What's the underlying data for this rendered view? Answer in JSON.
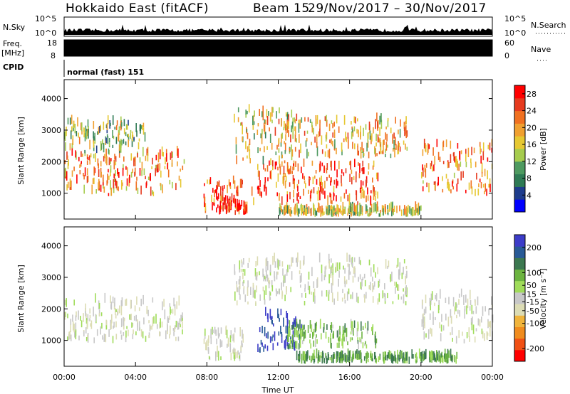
{
  "header": {
    "station": "Hokkaido East (fitACF)",
    "beam": "Beam 15",
    "date_range": "29/Nov/2017 – 30/Nov/2017"
  },
  "panels": {
    "nsky": {
      "left_label": "N.Sky",
      "right_label": "N.Search",
      "left_ticks": [
        "10^5",
        "10^0"
      ],
      "right_ticks": [
        "10^5",
        "10^0"
      ]
    },
    "freq": {
      "left_label": "Freq.",
      "unit": "[MHz]",
      "left_ticks": [
        "18",
        "8"
      ],
      "right_label": "Nave",
      "right_ticks": [
        "60",
        "0"
      ]
    },
    "cpid": {
      "label": "CPID",
      "program": "normal (fast) 151"
    }
  },
  "colors": {
    "power_scale": [
      "#0000ff",
      "#1e3c8c",
      "#2e7a54",
      "#4e9a60",
      "#a6cc4e",
      "#e6c832",
      "#f0a030",
      "#f07020",
      "#e63a1e",
      "#ff0000"
    ],
    "velocity_scale": [
      "#3c3cc8",
      "#285a96",
      "#3c7850",
      "#6cb440",
      "#a0dc5a",
      "#c8c8c8",
      "#dcdcb4",
      "#f0b43c",
      "#f08c1e",
      "#f05014",
      "#ff0000"
    ]
  },
  "chart_data": [
    {
      "type": "heatmap",
      "name": "power",
      "ylabel": "Slant Range [km]",
      "xlabel": "",
      "xlim": [
        "00:00",
        "24:00"
      ],
      "ylim": [
        180,
        4600
      ],
      "yticks": [
        1000,
        2000,
        3000,
        4000
      ],
      "xticks": [
        "00:00",
        "04:00",
        "08:00",
        "12:00",
        "16:00",
        "20:00",
        "00:00"
      ],
      "colorbar": {
        "label": "Power [dB]",
        "ticks": [
          4,
          8,
          12,
          16,
          20,
          24,
          28
        ],
        "range": [
          0,
          30
        ]
      },
      "regions": [
        {
          "t0": 0.0,
          "t1": 6.7,
          "r0": 900,
          "r1": 2200,
          "level": 0.72
        },
        {
          "t0": 0.0,
          "t1": 4.5,
          "r0": 2200,
          "r1": 3200,
          "level": 0.45
        },
        {
          "t0": 7.8,
          "t1": 10.0,
          "r0": 350,
          "r1": 1300,
          "level": 0.82
        },
        {
          "t0": 8.6,
          "t1": 10.3,
          "r0": 300,
          "r1": 600,
          "level": 0.93
        },
        {
          "t0": 10.5,
          "t1": 17.6,
          "r0": 600,
          "r1": 1900,
          "level": 0.78
        },
        {
          "t0": 9.5,
          "t1": 12.8,
          "r0": 1900,
          "r1": 3600,
          "level": 0.55
        },
        {
          "t0": 12.0,
          "t1": 19.2,
          "r0": 2100,
          "r1": 3300,
          "level": 0.62
        },
        {
          "t0": 20.0,
          "t1": 24.0,
          "r0": 900,
          "r1": 2500,
          "level": 0.74
        },
        {
          "t0": 12.0,
          "t1": 20.0,
          "r0": 250,
          "r1": 450,
          "level": 0.5
        }
      ]
    },
    {
      "type": "heatmap",
      "name": "velocity",
      "ylabel": "Slant Range [km]",
      "xlabel": "Time UT",
      "xlim": [
        "00:00",
        "24:00"
      ],
      "ylim": [
        180,
        4600
      ],
      "yticks": [
        1000,
        2000,
        3000,
        4000
      ],
      "xticks": [
        "00:00",
        "04:00",
        "08:00",
        "12:00",
        "16:00",
        "20:00",
        "00:00"
      ],
      "colorbar": {
        "label": "Velocity [m s⁻¹]",
        "ticks": [
          200,
          100,
          50,
          15,
          -15,
          -50,
          -100,
          -200
        ],
        "range": [
          -250,
          250
        ]
      },
      "regions": [
        {
          "t0": 0.0,
          "t1": 6.7,
          "r0": 900,
          "r1": 2200,
          "level": 0.0
        },
        {
          "t0": 7.8,
          "t1": 10.0,
          "r0": 300,
          "r1": 1300,
          "level": 0.0
        },
        {
          "t0": 10.8,
          "t1": 13.3,
          "r0": 600,
          "r1": 1800,
          "level": 150.0
        },
        {
          "t0": 12.5,
          "t1": 17.5,
          "r0": 700,
          "r1": 1400,
          "level": 45.0
        },
        {
          "t0": 9.5,
          "t1": 19.2,
          "r0": 2100,
          "r1": 3500,
          "level": 5.0
        },
        {
          "t0": 20.0,
          "t1": 24.0,
          "r0": 900,
          "r1": 2400,
          "level": 0.0
        },
        {
          "t0": 13.0,
          "t1": 22.0,
          "r0": 250,
          "r1": 450,
          "level": 60.0
        }
      ]
    }
  ]
}
